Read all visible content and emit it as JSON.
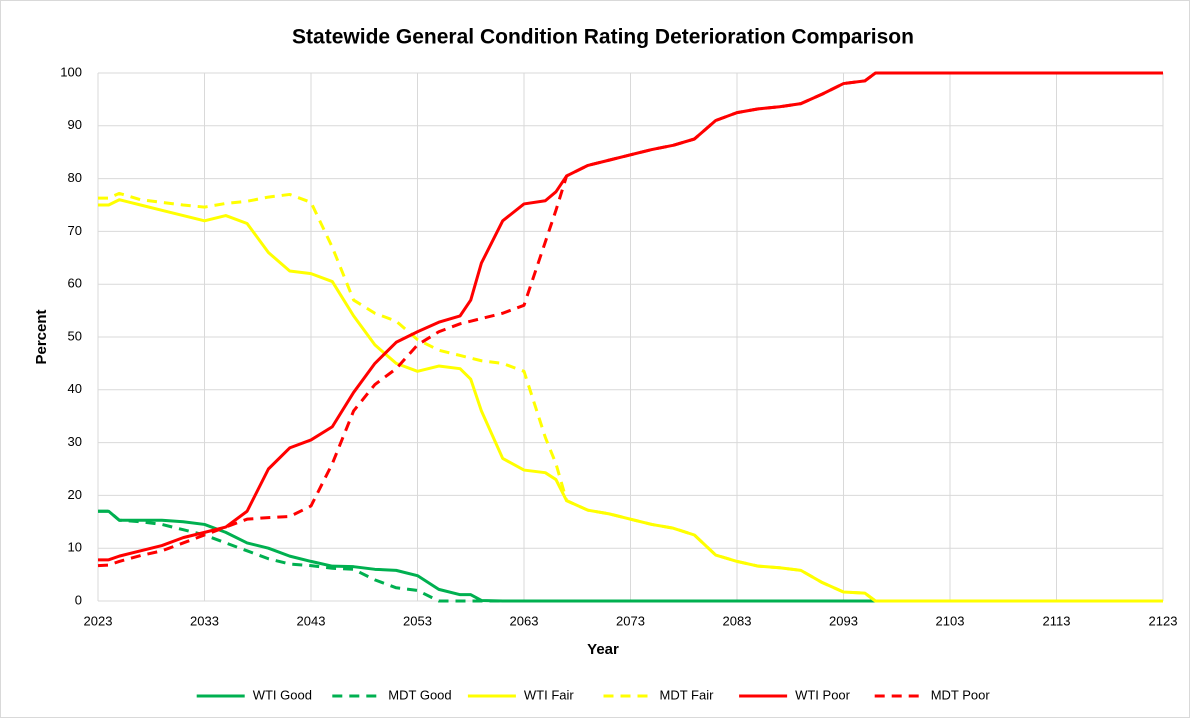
{
  "chart_data": {
    "type": "line",
    "title": "Statewide General Condition Rating Deterioration Comparison",
    "x_label": "Year",
    "y_label": "Percent",
    "x": [
      2023,
      2024,
      2025,
      2027,
      2029,
      2031,
      2033,
      2035,
      2037,
      2039,
      2041,
      2043,
      2045,
      2047,
      2049,
      2051,
      2053,
      2055,
      2057,
      2058,
      2059,
      2061,
      2063,
      2065,
      2066,
      2067,
      2069,
      2071,
      2073,
      2075,
      2077,
      2079,
      2081,
      2083,
      2085,
      2087,
      2089,
      2091,
      2093,
      2095,
      2096,
      2097,
      2103,
      2113,
      2123
    ],
    "series": [
      {
        "name": "WTI Good",
        "color": "#00b050",
        "dashed": false,
        "values": [
          17,
          17,
          15.3,
          15.3,
          15.3,
          15,
          14.5,
          13,
          11,
          10,
          8.5,
          7.5,
          6.6,
          6.5,
          6,
          5.8,
          4.8,
          2.2,
          1.2,
          1.2,
          0.1,
          0,
          0,
          0,
          0,
          0,
          0,
          0,
          0,
          0,
          0,
          0,
          0,
          0,
          0,
          0,
          0,
          0,
          0,
          0,
          0,
          0,
          0,
          0,
          0
        ]
      },
      {
        "name": "MDT Good",
        "color": "#00b050",
        "dashed": true,
        "values": [
          17,
          17,
          15.3,
          15,
          14.5,
          13.5,
          12.5,
          11,
          9.5,
          8,
          7,
          6.7,
          6.2,
          6,
          4,
          2.5,
          2,
          0,
          0,
          0,
          0,
          0,
          0,
          0,
          0,
          0,
          0,
          0,
          0,
          0,
          0,
          0,
          0,
          0,
          0,
          0,
          0,
          0,
          0,
          0,
          0,
          0,
          0,
          0,
          0
        ]
      },
      {
        "name": "WTI Fair",
        "color": "#ffff00",
        "dashed": false,
        "values": [
          75,
          75,
          76,
          75,
          74,
          73,
          72,
          73,
          71.5,
          66,
          62.5,
          62,
          60.5,
          54,
          48.5,
          45,
          43.5,
          44.5,
          44,
          42,
          36,
          27,
          24.8,
          24.3,
          23,
          19,
          17.2,
          16.5,
          15.5,
          14.5,
          13.8,
          12.5,
          8.7,
          7.5,
          6.6,
          6.3,
          5.8,
          3.5,
          1.7,
          1.5,
          0,
          0,
          0,
          0,
          0
        ]
      },
      {
        "name": "MDT Fair",
        "color": "#ffff00",
        "dashed": true,
        "values": [
          76.3,
          76.3,
          77.2,
          76,
          75.5,
          75,
          74.6,
          75.3,
          75.7,
          76.5,
          77,
          75.5,
          67,
          57,
          54.5,
          53,
          49.5,
          47.5,
          46.5,
          46,
          45.5,
          45,
          43.5,
          31,
          26,
          19,
          17.2,
          16.5,
          15.5,
          14.5,
          13.8,
          12.5,
          8.7,
          7.5,
          6.6,
          6.3,
          5.8,
          3.5,
          1.7,
          1.5,
          0,
          0,
          0,
          0,
          0
        ]
      },
      {
        "name": "WTI Poor",
        "color": "#ff0000",
        "dashed": false,
        "values": [
          7.8,
          7.8,
          8.5,
          9.5,
          10.5,
          12,
          13,
          14,
          17,
          25,
          29,
          30.5,
          33,
          39.5,
          45,
          49,
          51,
          52.8,
          54,
          57,
          64,
          72,
          75.2,
          75.8,
          77.5,
          80.5,
          82.5,
          83.5,
          84.5,
          85.5,
          86.3,
          87.5,
          91,
          92.5,
          93.2,
          93.6,
          94.2,
          96,
          98,
          98.5,
          100,
          100,
          100,
          100,
          100
        ]
      },
      {
        "name": "MDT Poor",
        "color": "#ff0000",
        "dashed": true,
        "values": [
          6.7,
          6.8,
          7.5,
          8.6,
          9.5,
          11,
          12.5,
          14,
          15.5,
          15.8,
          16,
          18,
          26,
          36,
          41,
          44,
          48.5,
          51,
          52.5,
          53,
          53.5,
          54.5,
          56,
          68,
          74,
          80.5,
          82.5,
          83.5,
          84.5,
          85.5,
          86.3,
          87.5,
          91,
          92.5,
          93.2,
          93.6,
          94.2,
          96,
          98,
          98.5,
          100,
          100,
          100,
          100,
          100
        ]
      }
    ],
    "xlim": [
      2023,
      2123
    ],
    "xticks": [
      2023,
      2033,
      2043,
      2053,
      2063,
      2073,
      2083,
      2093,
      2103,
      2113,
      2123
    ],
    "ylim": [
      0,
      100
    ],
    "yticks": [
      0,
      10,
      20,
      30,
      40,
      50,
      60,
      70,
      80,
      90,
      100
    ],
    "grid": true,
    "legend": "bottom"
  }
}
